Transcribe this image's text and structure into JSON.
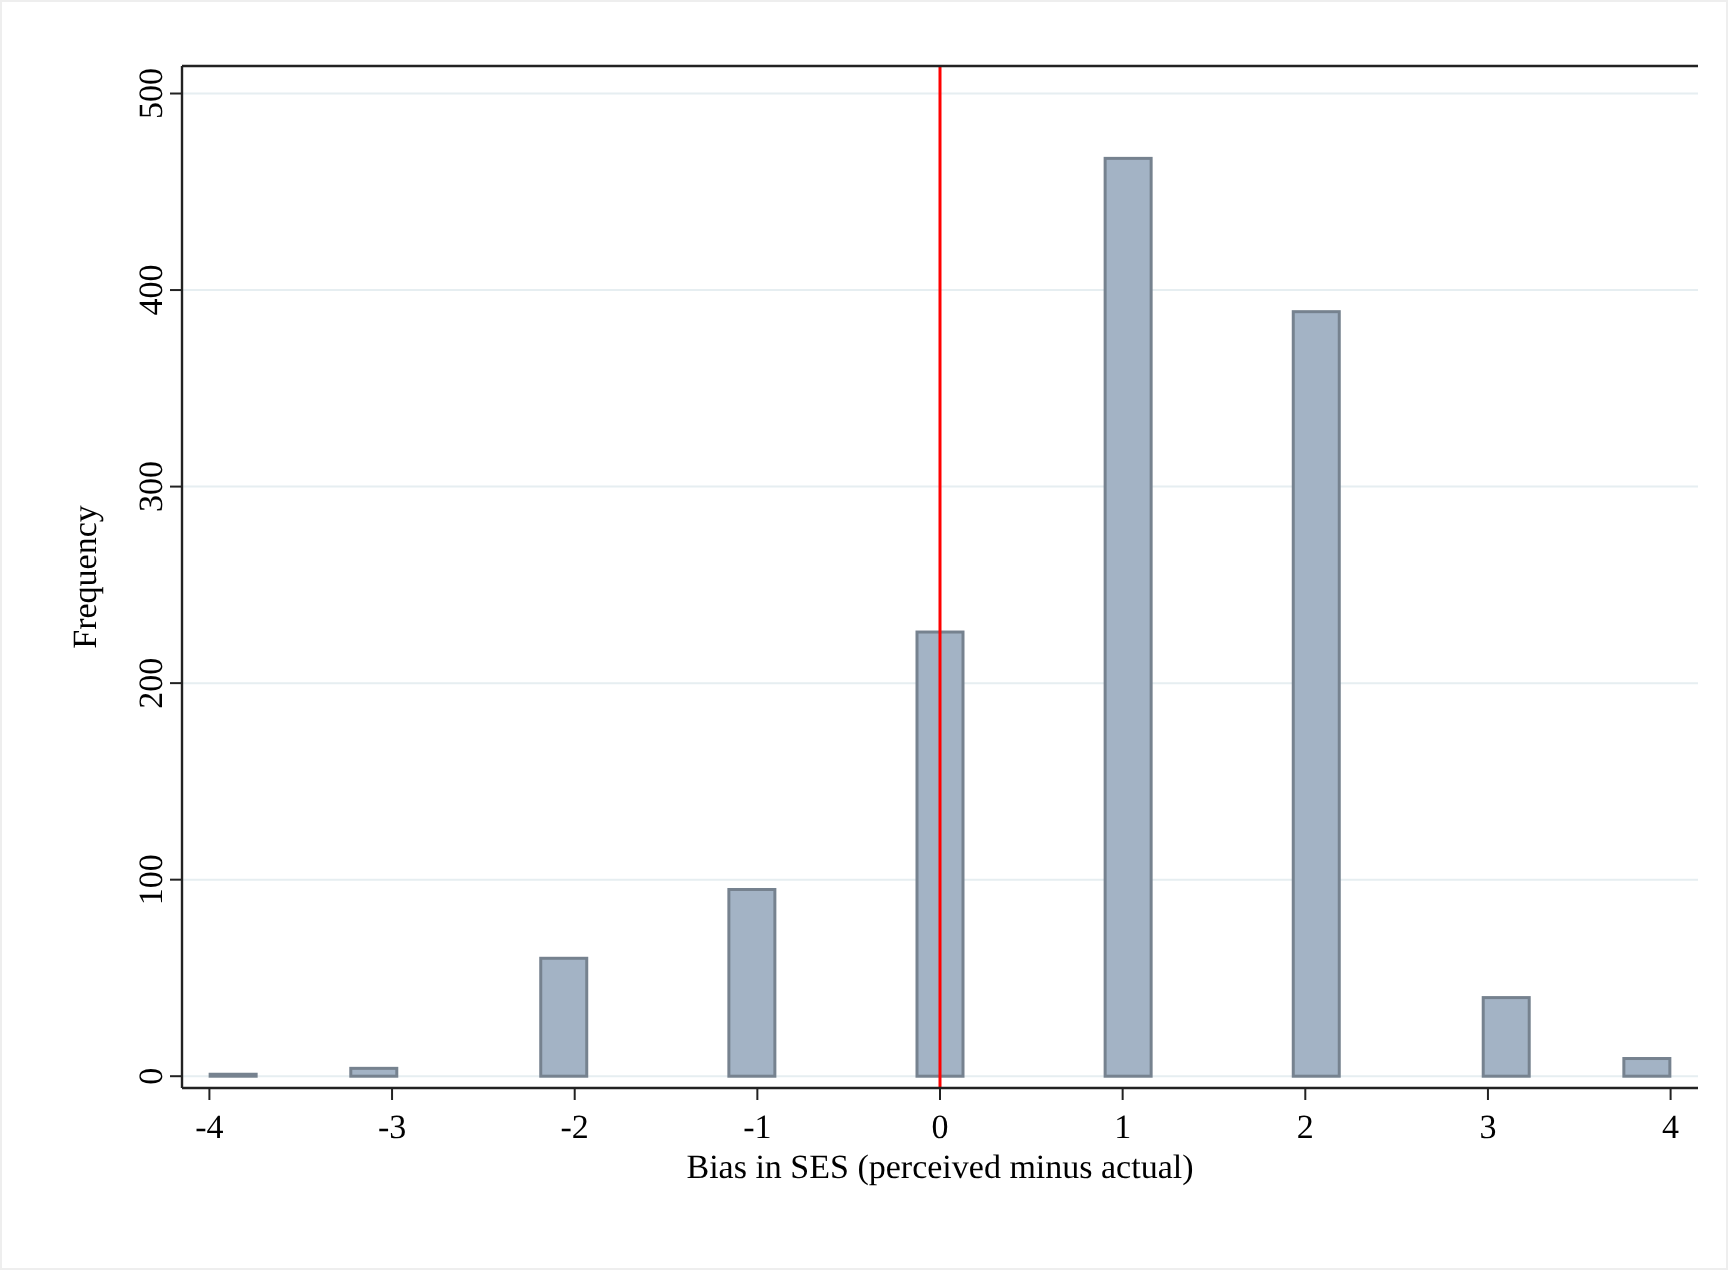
{
  "chart_data": {
    "type": "bar",
    "xlabel": "Bias in SES (perceived minus actual)",
    "ylabel": "Frequency",
    "x": [
      -3.87,
      -3.1,
      -2.06,
      -1.03,
      0,
      1.03,
      2.06,
      3.1,
      3.87
    ],
    "values": [
      1,
      4,
      60,
      95,
      226,
      467,
      389,
      40,
      9
    ],
    "color": "#a3b3c5",
    "xlim": [
      -4.15,
      4.15
    ],
    "xticks": [
      -4,
      -3,
      -2,
      -1,
      0,
      1,
      2,
      3,
      4
    ],
    "ylim": [
      -6,
      514
    ],
    "yticks": [
      0,
      100,
      200,
      300,
      400,
      500
    ],
    "grid": "y",
    "ref_lines": [
      {
        "axis": "x",
        "value": 0,
        "color": "#ff0000"
      }
    ]
  }
}
